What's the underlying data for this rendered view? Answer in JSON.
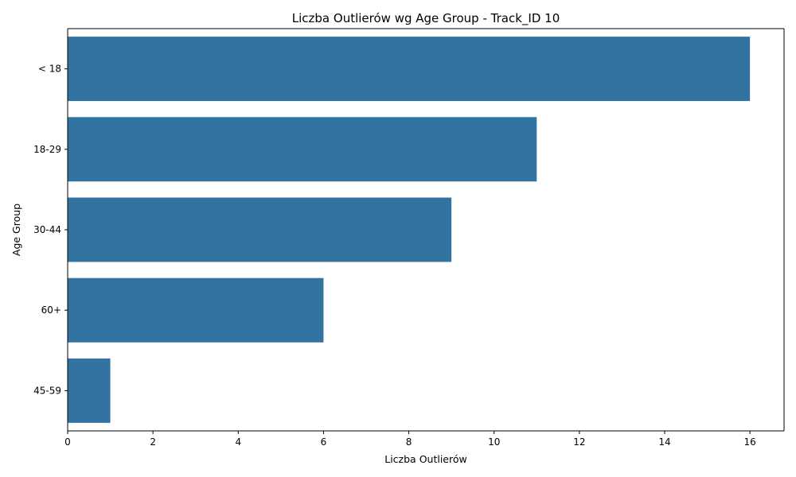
{
  "chart_data": {
    "type": "bar",
    "orientation": "horizontal",
    "title": "Liczba Outlierów wg Age Group - Track_ID 10",
    "xlabel": "Liczba Outlierów",
    "ylabel": "Age Group",
    "categories": [
      "< 18",
      "18-29",
      "30-44",
      "60+",
      "45-59"
    ],
    "values": [
      16,
      11,
      9,
      6,
      1
    ],
    "xlim": [
      0,
      16.8
    ],
    "xticks": [
      0,
      2,
      4,
      6,
      8,
      10,
      12,
      14,
      16
    ],
    "grid": false,
    "bar_color": "#3274a1"
  }
}
